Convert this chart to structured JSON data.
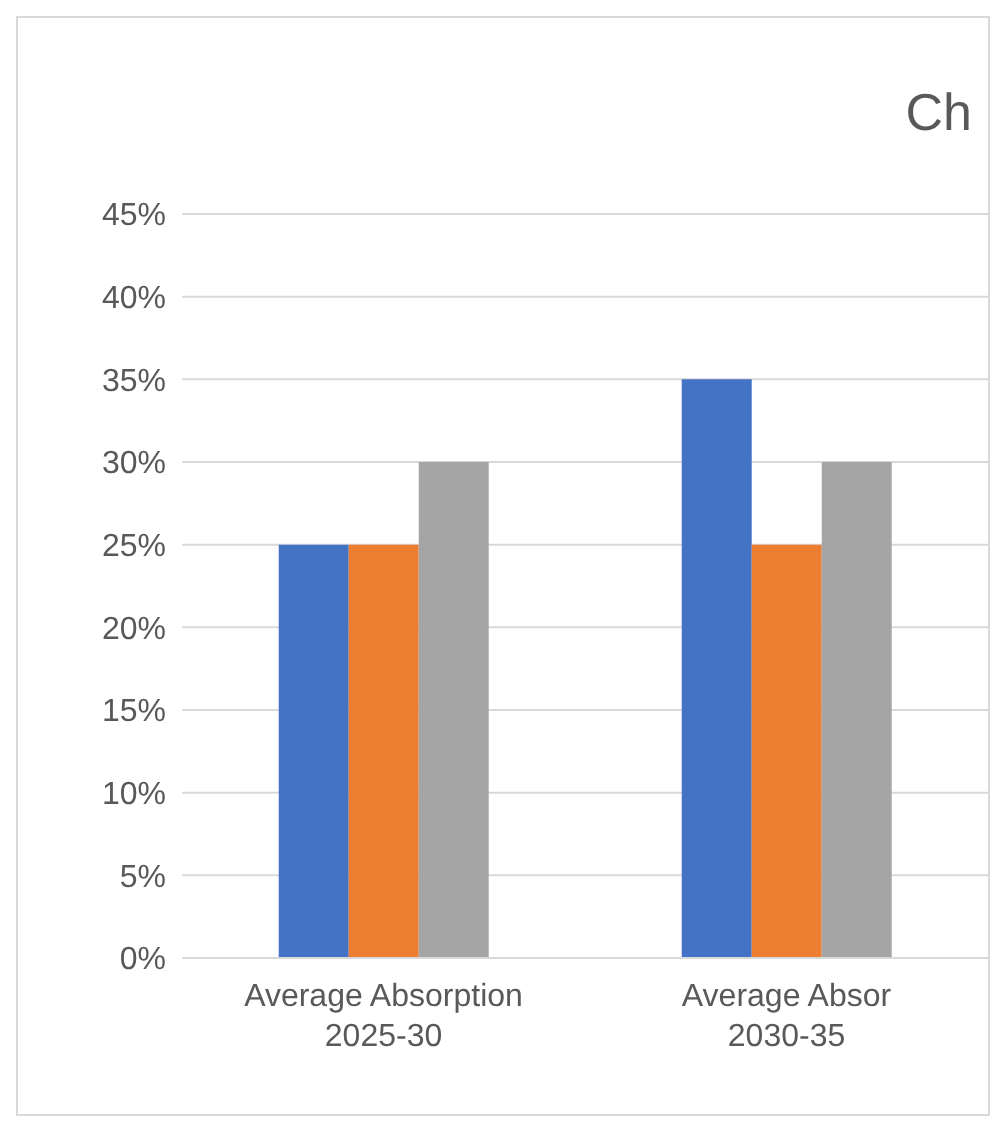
{
  "chart_data": {
    "type": "bar",
    "title": "Ch",
    "categories": [
      "Average Absorption 2025-30",
      "Average Absor 2030-35"
    ],
    "series": [
      {
        "color": "#4472c4",
        "values": [
          25,
          35
        ]
      },
      {
        "color": "#ed7d31",
        "values": [
          25,
          25
        ]
      },
      {
        "color": "#a5a5a5",
        "values": [
          30,
          30
        ]
      }
    ],
    "ylim": [
      0,
      45
    ],
    "yticks": [
      {
        "value": 0,
        "label": "0%"
      },
      {
        "value": 5,
        "label": "5%"
      },
      {
        "value": 10,
        "label": "10%"
      },
      {
        "value": 15,
        "label": "15%"
      },
      {
        "value": 20,
        "label": "20%"
      },
      {
        "value": 25,
        "label": "25%"
      },
      {
        "value": 30,
        "label": "30%"
      },
      {
        "value": 35,
        "label": "35%"
      },
      {
        "value": 40,
        "label": "40%"
      },
      {
        "value": 45,
        "label": "45%"
      }
    ],
    "grid": "y",
    "legend": false
  }
}
